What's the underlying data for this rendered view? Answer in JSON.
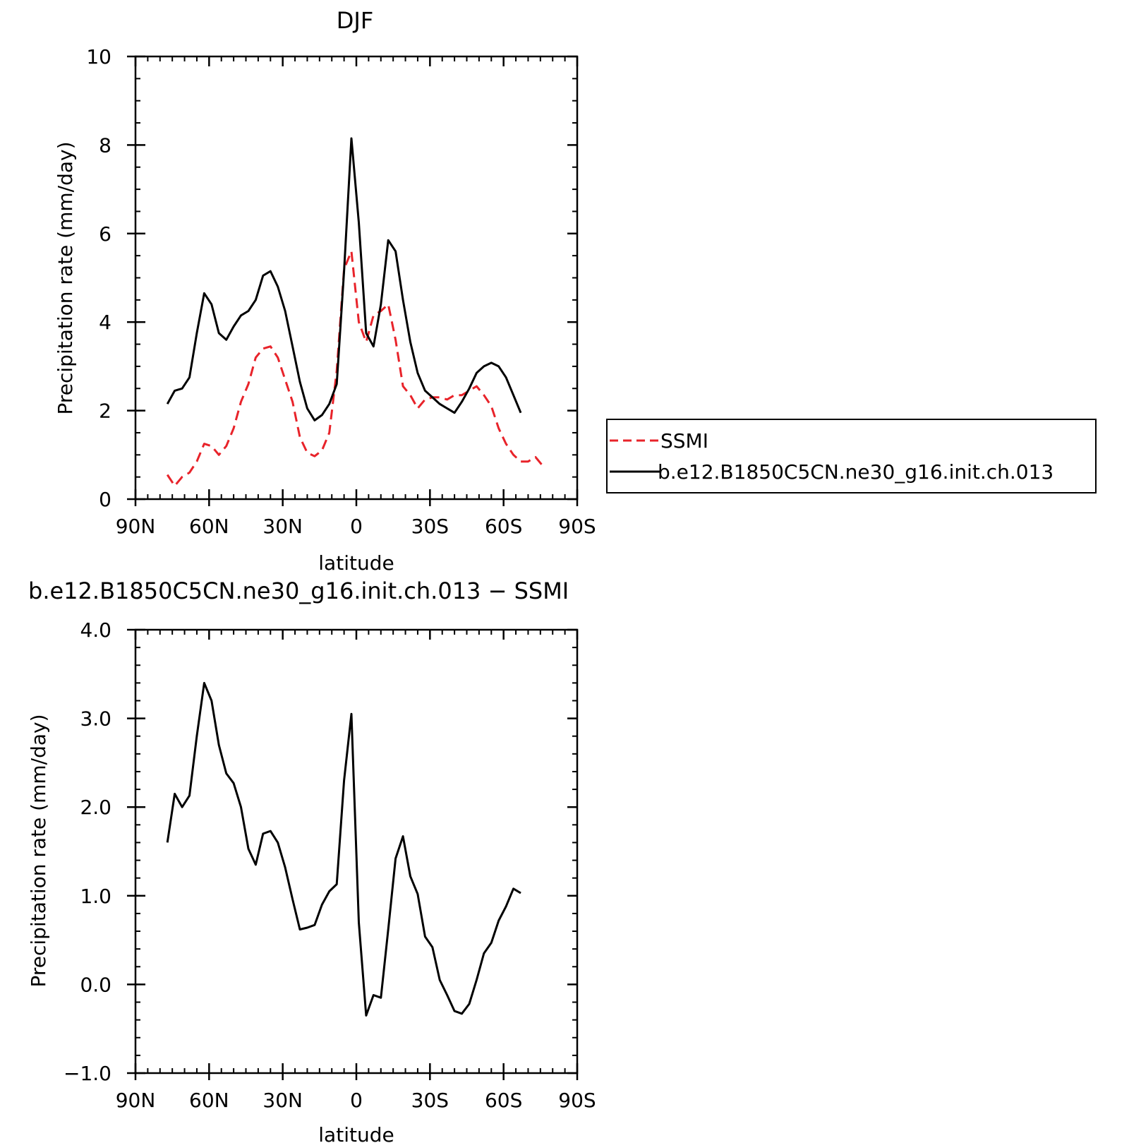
{
  "chart_data": [
    {
      "type": "line",
      "title": "DJF",
      "xlabel": "latitude",
      "ylabel": "Precipitation rate (mm/day)",
      "xlim": [
        90,
        -90
      ],
      "ylim": [
        0,
        10
      ],
      "x_tick_values": [
        90,
        60,
        30,
        0,
        -30,
        -60,
        -90
      ],
      "x_tick_labels": [
        "90N",
        "60N",
        "30N",
        "0",
        "30S",
        "60S",
        "90S"
      ],
      "y_tick_values": [
        0,
        2,
        4,
        6,
        8,
        10
      ],
      "y_tick_labels": [
        "0",
        "2",
        "4",
        "6",
        "8",
        "10"
      ],
      "grid": false,
      "legend_position": "right",
      "series": [
        {
          "name": "SSMI",
          "color": "#e8232a",
          "dash": "dashed",
          "x": [
            77,
            74,
            71,
            68,
            65,
            62,
            59,
            56,
            53,
            50,
            47,
            44,
            41,
            38,
            35,
            32,
            29,
            26,
            23,
            20,
            17,
            14,
            11,
            8,
            5,
            2,
            -1,
            -4,
            -7,
            -10,
            -13,
            -16,
            -19,
            -22,
            -25,
            -28,
            -31,
            -34,
            -37,
            -40,
            -43,
            -46,
            -49,
            -52,
            -55,
            -58,
            -61,
            -64,
            -67,
            -70,
            -73,
            -76
          ],
          "y": [
            0.55,
            0.3,
            0.5,
            0.6,
            0.85,
            1.25,
            1.2,
            1.0,
            1.2,
            1.6,
            2.2,
            2.6,
            3.2,
            3.4,
            3.45,
            3.2,
            2.7,
            2.2,
            1.4,
            1.05,
            0.97,
            1.1,
            1.5,
            2.9,
            5.2,
            5.6,
            4.0,
            3.55,
            4.15,
            4.25,
            4.4,
            3.6,
            2.55,
            2.35,
            2.05,
            2.25,
            2.3,
            2.3,
            2.25,
            2.35,
            2.35,
            2.45,
            2.55,
            2.35,
            2.1,
            1.6,
            1.25,
            1.0,
            0.85,
            0.85,
            0.95,
            0.75
          ]
        },
        {
          "name": "b.e12.B1850C5CN.ne30_g16.init.ch.013",
          "color": "#000000",
          "dash": "solid",
          "x": [
            77,
            74,
            71,
            68,
            65,
            62,
            59,
            56,
            53,
            50,
            47,
            44,
            41,
            38,
            35,
            32,
            29,
            26,
            23,
            20,
            17,
            14,
            11,
            8,
            5,
            2,
            -1,
            -4,
            -7,
            -10,
            -13,
            -16,
            -19,
            -22,
            -25,
            -28,
            -31,
            -34,
            -37,
            -40,
            -43,
            -46,
            -49,
            -52,
            -55,
            -58,
            -61,
            -64,
            -67
          ],
          "y": [
            2.15,
            2.45,
            2.5,
            2.75,
            3.75,
            4.65,
            4.4,
            3.75,
            3.6,
            3.9,
            4.15,
            4.25,
            4.5,
            5.05,
            5.15,
            4.8,
            4.25,
            3.45,
            2.65,
            2.05,
            1.78,
            1.9,
            2.15,
            2.6,
            5.15,
            8.15,
            6.25,
            3.75,
            3.45,
            4.4,
            5.85,
            5.6,
            4.5,
            3.55,
            2.85,
            2.45,
            2.3,
            2.15,
            2.05,
            1.95,
            2.2,
            2.5,
            2.85,
            3.0,
            3.08,
            3.0,
            2.75,
            2.35,
            1.95
          ]
        }
      ],
      "legend": [
        "SSMI",
        "b.e12.B1850C5CN.ne30_g16.init.ch.013"
      ]
    },
    {
      "type": "line",
      "title": "b.e12.B1850C5CN.ne30_g16.init.ch.013 − SSMI",
      "xlabel": "latitude",
      "ylabel": "Precipitation rate (mm/day)",
      "xlim": [
        90,
        -90
      ],
      "ylim": [
        -1.0,
        4.0
      ],
      "x_tick_values": [
        90,
        60,
        30,
        0,
        -30,
        -60,
        -90
      ],
      "x_tick_labels": [
        "90N",
        "60N",
        "30N",
        "0",
        "30S",
        "60S",
        "90S"
      ],
      "y_tick_values": [
        -1.0,
        0.0,
        1.0,
        2.0,
        3.0,
        4.0
      ],
      "y_tick_labels": [
        "−1.0",
        "0.0",
        "1.0",
        "2.0",
        "3.0",
        "4.0"
      ],
      "grid": false,
      "series": [
        {
          "color": "#000000",
          "dash": "solid",
          "x": [
            77,
            74,
            71,
            68,
            65,
            62,
            59,
            56,
            53,
            50,
            47,
            44,
            41,
            38,
            35,
            32,
            29,
            26,
            23,
            20,
            17,
            14,
            11,
            8,
            5,
            2,
            -1,
            -4,
            -7,
            -10,
            -13,
            -16,
            -19,
            -22,
            -25,
            -28,
            -31,
            -34,
            -37,
            -40,
            -43,
            -46,
            -49,
            -52,
            -55,
            -58,
            -61,
            -64,
            -67
          ],
          "y": [
            1.6,
            2.15,
            2.0,
            2.13,
            2.8,
            3.4,
            3.2,
            2.7,
            2.38,
            2.27,
            2.0,
            1.53,
            1.35,
            1.7,
            1.73,
            1.6,
            1.32,
            0.96,
            0.62,
            0.64,
            0.67,
            0.9,
            1.05,
            1.13,
            2.3,
            3.05,
            0.7,
            -0.35,
            -0.12,
            -0.15,
            0.62,
            1.42,
            1.67,
            1.22,
            1.02,
            0.54,
            0.42,
            0.05,
            -0.12,
            -0.3,
            -0.33,
            -0.22,
            0.05,
            0.35,
            0.47,
            0.72,
            0.88,
            1.08,
            1.03
          ]
        }
      ]
    }
  ]
}
